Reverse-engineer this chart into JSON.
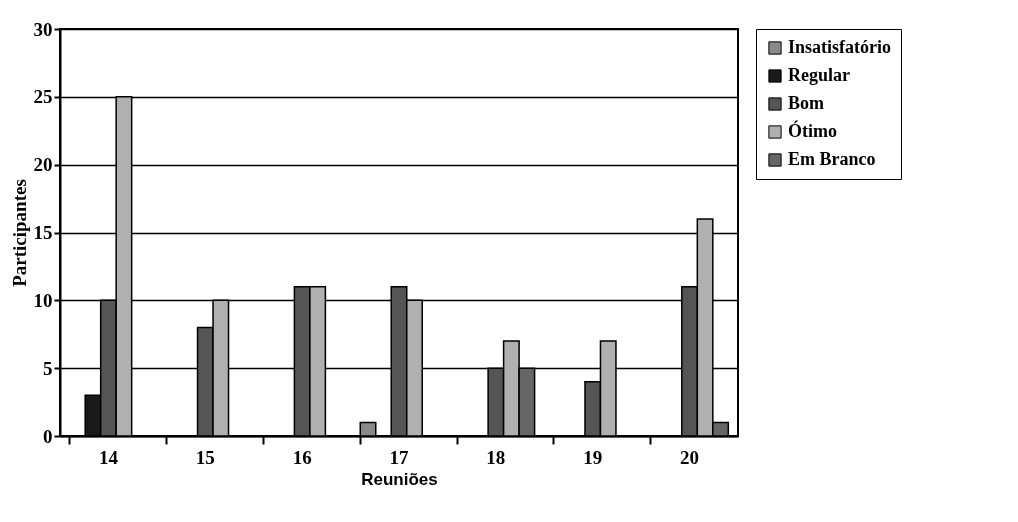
{
  "chart_data": {
    "type": "bar",
    "xlabel": "Reuniões",
    "ylabel": "Participantes",
    "categories": [
      "14",
      "15",
      "16",
      "17",
      "18",
      "19",
      "20"
    ],
    "series": [
      {
        "name": "Insatisfatório",
        "color": "#8a8a8a",
        "values": [
          null,
          null,
          null,
          1,
          null,
          null,
          null
        ]
      },
      {
        "name": "Regular",
        "color": "#1a1a1a",
        "values": [
          3,
          null,
          null,
          null,
          null,
          null,
          null
        ]
      },
      {
        "name": "Bom",
        "color": "#555555",
        "values": [
          10,
          8,
          11,
          11,
          5,
          4,
          11
        ]
      },
      {
        "name": "Ótimo",
        "color": "#b0b0b0",
        "values": [
          25,
          10,
          11,
          10,
          7,
          7,
          16
        ]
      },
      {
        "name": "Em Branco",
        "color": "#666666",
        "values": [
          null,
          null,
          null,
          null,
          5,
          null,
          1
        ]
      }
    ],
    "ylim": [
      0,
      30
    ],
    "yticks": [
      0,
      5,
      10,
      15,
      20,
      25,
      30
    ],
    "grid": "y",
    "legend": "right"
  }
}
